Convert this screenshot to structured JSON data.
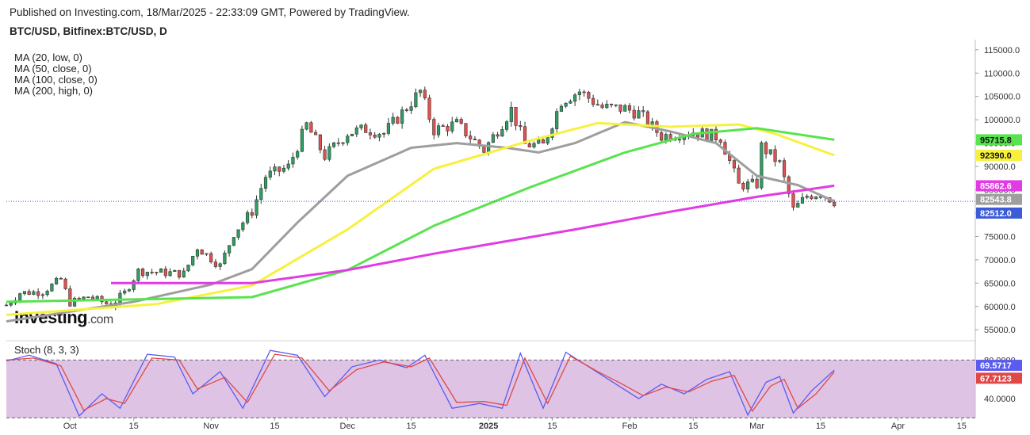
{
  "header": {
    "published": "Published on Investing.com, 18/Mar/2025 - 22:33:09 GMT, Powered by TradingView.",
    "symbol": "BTC/USD, Bitfinex:BTC/USD, D"
  },
  "logo": {
    "main": "Investing",
    "suffix": ".com"
  },
  "colors": {
    "up": "#2e9e63",
    "down": "#e0524f",
    "ma20": "#9e9e9e",
    "ma50": "#f7f13e",
    "ma100": "#58e34f",
    "ma200": "#e23be3",
    "stoch_k": "#5b5bf0",
    "stoch_d": "#e04848",
    "stoch_band": "#d9b8e0",
    "last_price_line": "#3b5bd9"
  },
  "chart_data": [
    {
      "type": "candlestick",
      "title": "BTC/USD, Bitfinex:BTC/USD, D",
      "y_axis": {
        "range": [
          53000,
          116500
        ],
        "ticks": [
          55000,
          60000,
          65000,
          70000,
          75000,
          80000,
          85000,
          90000,
          95000,
          100000,
          105000,
          110000,
          115000
        ],
        "tick_labels": [
          "55000.0",
          "60000.0",
          "65000.0",
          "70000.0",
          "75000.0",
          "80000.0",
          "85000.0",
          "90000.0",
          "95000.0",
          "100000.0",
          "105000.0",
          "110000.0",
          "115000.0"
        ]
      },
      "x_axis": {
        "start_date": "2024-09-17",
        "end_date": "2025-04-18",
        "ticks": [
          {
            "date": "2024-10-01",
            "label": "Oct",
            "bold": false
          },
          {
            "date": "2024-10-15",
            "label": "15",
            "bold": false
          },
          {
            "date": "2024-11-01",
            "label": "Nov",
            "bold": false
          },
          {
            "date": "2024-11-15",
            "label": "15",
            "bold": false
          },
          {
            "date": "2024-12-01",
            "label": "Dec",
            "bold": false
          },
          {
            "date": "2024-12-15",
            "label": "15",
            "bold": false
          },
          {
            "date": "2025-01-01",
            "label": "2025",
            "bold": true
          },
          {
            "date": "2025-01-15",
            "label": "15",
            "bold": false
          },
          {
            "date": "2025-02-01",
            "label": "Feb",
            "bold": false
          },
          {
            "date": "2025-02-15",
            "label": "15",
            "bold": false
          },
          {
            "date": "2025-03-01",
            "label": "Mar",
            "bold": false
          },
          {
            "date": "2025-03-15",
            "label": "15",
            "bold": false
          },
          {
            "date": "2025-04-01",
            "label": "Apr",
            "bold": false
          },
          {
            "date": "2025-04-15",
            "label": "15",
            "bold": false
          }
        ]
      },
      "close_series": [
        {
          "date": "2024-09-17",
          "close": 60300
        },
        {
          "date": "2024-09-20",
          "close": 62900
        },
        {
          "date": "2024-09-25",
          "close": 63200
        },
        {
          "date": "2024-09-29",
          "close": 65800
        },
        {
          "date": "2024-10-01",
          "close": 60800
        },
        {
          "date": "2024-10-05",
          "close": 62100
        },
        {
          "date": "2024-10-10",
          "close": 60300
        },
        {
          "date": "2024-10-13",
          "close": 62900
        },
        {
          "date": "2024-10-16",
          "close": 67600
        },
        {
          "date": "2024-10-21",
          "close": 67300
        },
        {
          "date": "2024-10-26",
          "close": 67000
        },
        {
          "date": "2024-10-29",
          "close": 72700
        },
        {
          "date": "2024-11-03",
          "close": 68700
        },
        {
          "date": "2024-11-06",
          "close": 75700
        },
        {
          "date": "2024-11-10",
          "close": 80400
        },
        {
          "date": "2024-11-13",
          "close": 87900
        },
        {
          "date": "2024-11-18",
          "close": 89900
        },
        {
          "date": "2024-11-22",
          "close": 98900
        },
        {
          "date": "2024-11-26",
          "close": 92200
        },
        {
          "date": "2024-12-01",
          "close": 97200
        },
        {
          "date": "2024-12-05",
          "close": 98000
        },
        {
          "date": "2024-12-09",
          "close": 97100
        },
        {
          "date": "2024-12-13",
          "close": 101500
        },
        {
          "date": "2024-12-17",
          "close": 106100
        },
        {
          "date": "2024-12-20",
          "close": 97800
        },
        {
          "date": "2024-12-25",
          "close": 99100
        },
        {
          "date": "2024-12-31",
          "close": 93500
        },
        {
          "date": "2025-01-06",
          "close": 102200
        },
        {
          "date": "2025-01-09",
          "close": 94700
        },
        {
          "date": "2025-01-13",
          "close": 94500
        },
        {
          "date": "2025-01-17",
          "close": 104100
        },
        {
          "date": "2025-01-21",
          "close": 106100
        },
        {
          "date": "2025-01-26",
          "close": 102600
        },
        {
          "date": "2025-01-31",
          "close": 102400
        },
        {
          "date": "2025-02-03",
          "close": 101400
        },
        {
          "date": "2025-02-08",
          "close": 96500
        },
        {
          "date": "2025-02-15",
          "close": 97500
        },
        {
          "date": "2025-02-21",
          "close": 96200
        },
        {
          "date": "2025-02-25",
          "close": 86000
        },
        {
          "date": "2025-03-01",
          "close": 86200
        },
        {
          "date": "2025-03-02",
          "close": 94300
        },
        {
          "date": "2025-03-06",
          "close": 90600
        },
        {
          "date": "2025-03-09",
          "close": 80700
        },
        {
          "date": "2025-03-12",
          "close": 83700
        },
        {
          "date": "2025-03-15",
          "close": 84300
        },
        {
          "date": "2025-03-18",
          "close": 82500
        }
      ],
      "moving_averages": [
        {
          "name": "MA (20, low, 0)",
          "color": "#9e9e9e",
          "last_value_label": "82543.8",
          "points": [
            [
              "2024-09-17",
              56800
            ],
            [
              "2024-10-01",
              58900
            ],
            [
              "2024-10-15",
              61000
            ],
            [
              "2024-11-01",
              64700
            ],
            [
              "2024-11-10",
              68000
            ],
            [
              "2024-11-20",
              78000
            ],
            [
              "2024-12-01",
              88000
            ],
            [
              "2024-12-15",
              94000
            ],
            [
              "2024-12-25",
              95000
            ],
            [
              "2025-01-05",
              94000
            ],
            [
              "2025-01-12",
              93000
            ],
            [
              "2025-01-20",
              95000
            ],
            [
              "2025-01-31",
              99500
            ],
            [
              "2025-02-10",
              97500
            ],
            [
              "2025-02-20",
              95000
            ],
            [
              "2025-03-01",
              88000
            ],
            [
              "2025-03-10",
              86000
            ],
            [
              "2025-03-18",
              82544
            ]
          ]
        },
        {
          "name": "MA (50, close, 0)",
          "color": "#f7f13e",
          "last_value_label": "92390.0",
          "points": [
            [
              "2024-09-17",
              58200
            ],
            [
              "2024-10-20",
              60500
            ],
            [
              "2024-11-10",
              64500
            ],
            [
              "2024-12-01",
              76500
            ],
            [
              "2024-12-20",
              89500
            ],
            [
              "2025-01-10",
              95500
            ],
            [
              "2025-01-25",
              99300
            ],
            [
              "2025-02-10",
              98500
            ],
            [
              "2025-02-25",
              99000
            ],
            [
              "2025-03-05",
              97000
            ],
            [
              "2025-03-18",
              92390
            ]
          ]
        },
        {
          "name": "MA (100, close, 0)",
          "color": "#58e34f",
          "last_value_label": "95715.8",
          "points": [
            [
              "2024-09-17",
              61000
            ],
            [
              "2024-11-10",
              62000
            ],
            [
              "2024-12-01",
              67800
            ],
            [
              "2024-12-20",
              77300
            ],
            [
              "2025-01-10",
              85500
            ],
            [
              "2025-01-31",
              93000
            ],
            [
              "2025-02-15",
              97000
            ],
            [
              "2025-03-01",
              98200
            ],
            [
              "2025-03-18",
              95716
            ]
          ]
        },
        {
          "name": "MA (200, high, 0)",
          "color": "#e23be3",
          "last_value_label": "85862.6",
          "points": [
            [
              "2024-10-10",
              65000
            ],
            [
              "2024-11-10",
              65000
            ],
            [
              "2024-12-01",
              67800
            ],
            [
              "2024-12-20",
              71300
            ],
            [
              "2025-01-20",
              76500
            ],
            [
              "2025-02-10",
              80300
            ],
            [
              "2025-03-01",
              83500
            ],
            [
              "2025-03-18",
              85863
            ]
          ]
        }
      ],
      "price_labels": {
        "last_price": "82512.0",
        "last_price_value": 82512
      }
    },
    {
      "type": "line",
      "title": "Stoch (8, 3, 3)",
      "y_axis": {
        "range": [
          22,
          100
        ],
        "ticks": [
          40,
          80
        ],
        "tick_labels": [
          "40.0000",
          "80.0000"
        ]
      },
      "bands": {
        "upper": 80,
        "lower": 20
      },
      "series": [
        {
          "name": "%K",
          "color": "#5b5bf0",
          "last_value_label": "69.5717",
          "points": [
            [
              "2024-09-17",
              79
            ],
            [
              "2024-09-22",
              85
            ],
            [
              "2024-09-28",
              76
            ],
            [
              "2024-10-03",
              22
            ],
            [
              "2024-10-08",
              45
            ],
            [
              "2024-10-12",
              30
            ],
            [
              "2024-10-18",
              86
            ],
            [
              "2024-10-24",
              83
            ],
            [
              "2024-10-28",
              45
            ],
            [
              "2024-11-03",
              68
            ],
            [
              "2024-11-08",
              30
            ],
            [
              "2024-11-14",
              90
            ],
            [
              "2024-11-20",
              85
            ],
            [
              "2024-11-26",
              42
            ],
            [
              "2024-12-02",
              73
            ],
            [
              "2024-12-08",
              80
            ],
            [
              "2024-12-14",
              72
            ],
            [
              "2024-12-18",
              85
            ],
            [
              "2024-12-24",
              30
            ],
            [
              "2024-12-30",
              35
            ],
            [
              "2025-01-04",
              30
            ],
            [
              "2025-01-08",
              87
            ],
            [
              "2025-01-13",
              30
            ],
            [
              "2025-01-18",
              88
            ],
            [
              "2025-01-24",
              70
            ],
            [
              "2025-01-29",
              55
            ],
            [
              "2025-02-03",
              40
            ],
            [
              "2025-02-08",
              55
            ],
            [
              "2025-02-13",
              45
            ],
            [
              "2025-02-18",
              60
            ],
            [
              "2025-02-23",
              68
            ],
            [
              "2025-02-27",
              23
            ],
            [
              "2025-03-03",
              57
            ],
            [
              "2025-03-06",
              63
            ],
            [
              "2025-03-09",
              25
            ],
            [
              "2025-03-13",
              48
            ],
            [
              "2025-03-18",
              69.57
            ]
          ]
        },
        {
          "name": "%D",
          "color": "#e04848",
          "last_value_label": "67.7123",
          "points": [
            [
              "2024-09-17",
              80
            ],
            [
              "2024-09-23",
              82
            ],
            [
              "2024-09-29",
              74
            ],
            [
              "2024-10-04",
              28
            ],
            [
              "2024-10-09",
              40
            ],
            [
              "2024-10-13",
              35
            ],
            [
              "2024-10-19",
              82
            ],
            [
              "2024-10-25",
              80
            ],
            [
              "2024-10-29",
              50
            ],
            [
              "2024-11-04",
              62
            ],
            [
              "2024-11-09",
              36
            ],
            [
              "2024-11-15",
              86
            ],
            [
              "2024-11-21",
              82
            ],
            [
              "2024-11-27",
              48
            ],
            [
              "2024-12-03",
              70
            ],
            [
              "2024-12-09",
              78
            ],
            [
              "2024-12-15",
              73
            ],
            [
              "2024-12-19",
              82
            ],
            [
              "2024-12-25",
              36
            ],
            [
              "2024-12-31",
              37
            ],
            [
              "2025-01-05",
              33
            ],
            [
              "2025-01-09",
              82
            ],
            [
              "2025-01-14",
              35
            ],
            [
              "2025-01-19",
              84
            ],
            [
              "2025-01-25",
              68
            ],
            [
              "2025-01-30",
              56
            ],
            [
              "2025-02-04",
              43
            ],
            [
              "2025-02-09",
              52
            ],
            [
              "2025-02-14",
              47
            ],
            [
              "2025-02-19",
              58
            ],
            [
              "2025-02-24",
              64
            ],
            [
              "2025-02-28",
              27
            ],
            [
              "2025-03-04",
              53
            ],
            [
              "2025-03-07",
              60
            ],
            [
              "2025-03-10",
              30
            ],
            [
              "2025-03-14",
              45
            ],
            [
              "2025-03-18",
              67.71
            ]
          ]
        }
      ]
    }
  ]
}
